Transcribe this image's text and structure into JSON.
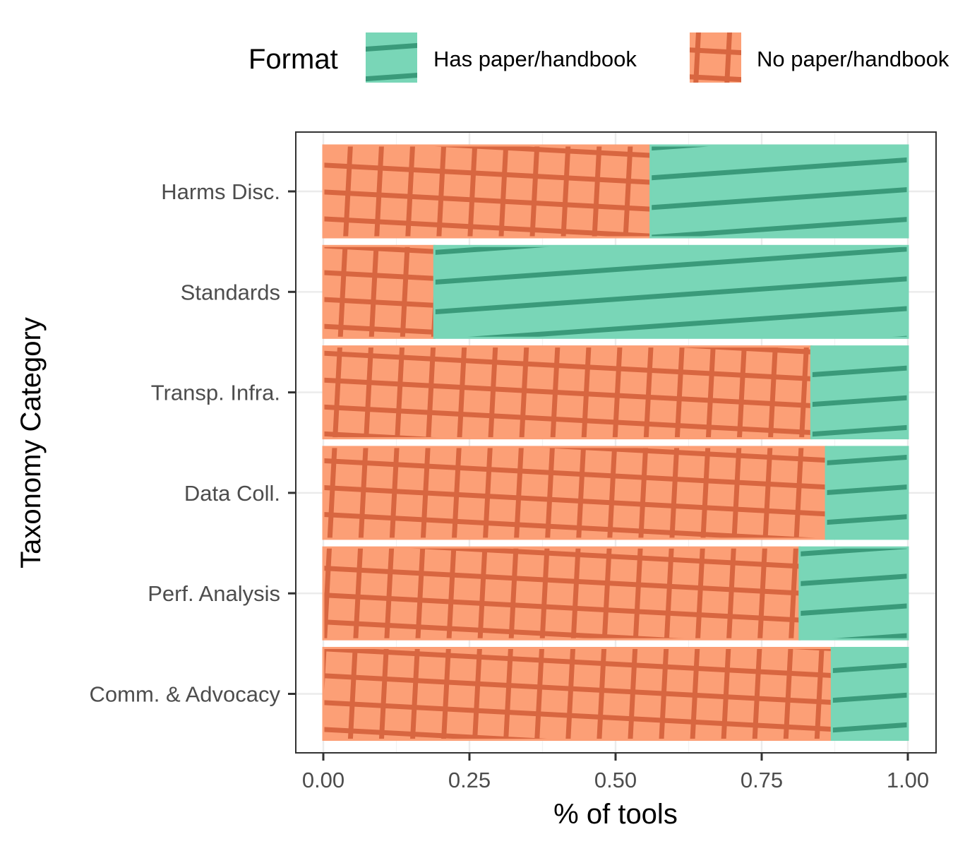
{
  "chart_data": {
    "type": "bar",
    "orientation": "horizontal",
    "stacked": true,
    "categories": [
      "Harms Disc.",
      "Standards",
      "Transp. Infra.",
      "Data Coll.",
      "Perf. Analysis",
      "Comm. & Advocacy"
    ],
    "series": [
      {
        "name": "No paper/handbook",
        "values": [
          0.56,
          0.19,
          0.835,
          0.86,
          0.815,
          0.87
        ],
        "color": "#fc9f76",
        "pattern_color": "#d86640",
        "pattern": "crosshatch"
      },
      {
        "name": "Has paper/handbook",
        "values": [
          0.44,
          0.81,
          0.165,
          0.14,
          0.185,
          0.13
        ],
        "color": "#79d6b7",
        "pattern_color": "#3a9a7a",
        "pattern": "stripes"
      }
    ],
    "xlabel": "% of tools",
    "ylabel": "Taxonomy Category",
    "xlim": [
      0,
      1
    ],
    "x_ticks": [
      "0.00",
      "0.25",
      "0.50",
      "0.75",
      "1.00"
    ],
    "legend": {
      "title": "Format",
      "position": "top",
      "entries": [
        "Has paper/handbook",
        "No paper/handbook"
      ]
    },
    "grid": true
  }
}
